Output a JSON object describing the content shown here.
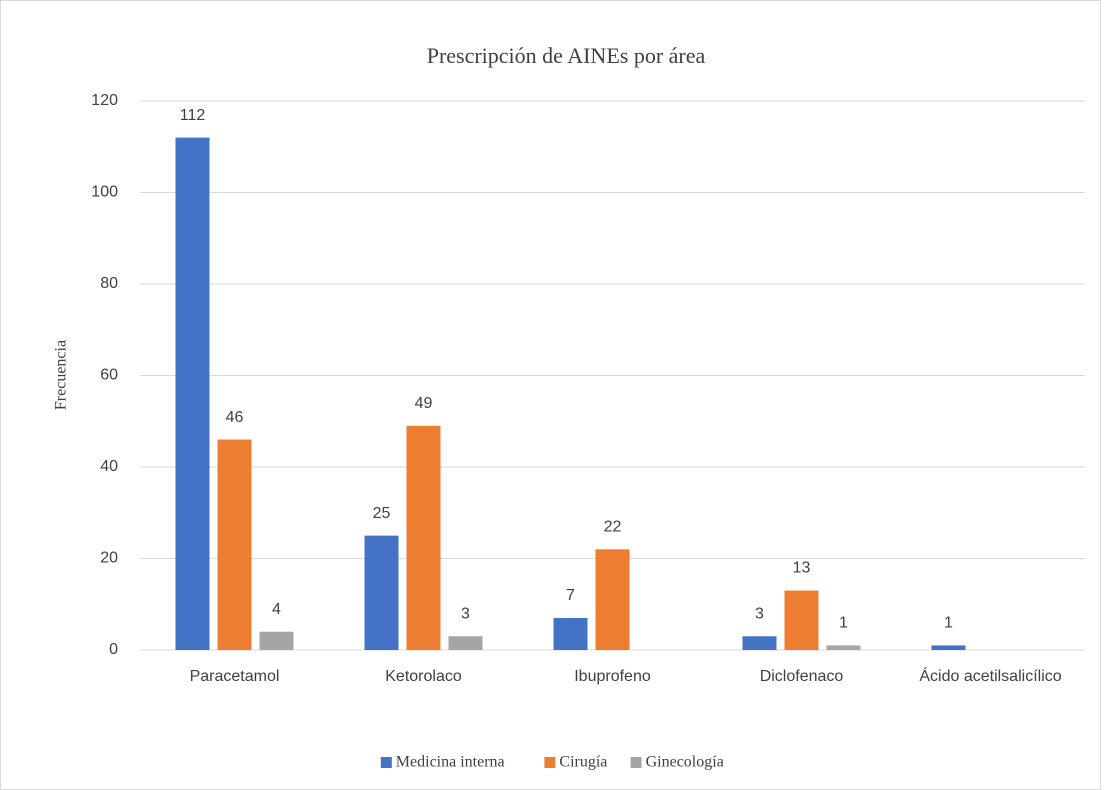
{
  "chart_data": {
    "type": "bar",
    "title": "Prescripción de AINEs por área",
    "y_label": "Frecuencia",
    "categories": [
      "Paracetamol",
      "Ketorolaco",
      "Ibuprofeno",
      "Diclofenaco",
      "Ácido acetilsalicílico"
    ],
    "series": [
      {
        "name": "Medicina interna",
        "color": "#4472c4",
        "values": [
          112,
          25,
          7,
          3,
          1
        ]
      },
      {
        "name": "Cirugía",
        "color": "#ed7d31",
        "values": [
          46,
          49,
          22,
          13,
          null
        ]
      },
      {
        "name": "Ginecología",
        "color": "#a5a5a5",
        "values": [
          4,
          3,
          null,
          1,
          null
        ]
      }
    ],
    "ylim": [
      0,
      120
    ],
    "yticks": [
      0,
      20,
      40,
      60,
      80,
      100,
      120
    ],
    "grid": true,
    "legend": "bottom"
  }
}
